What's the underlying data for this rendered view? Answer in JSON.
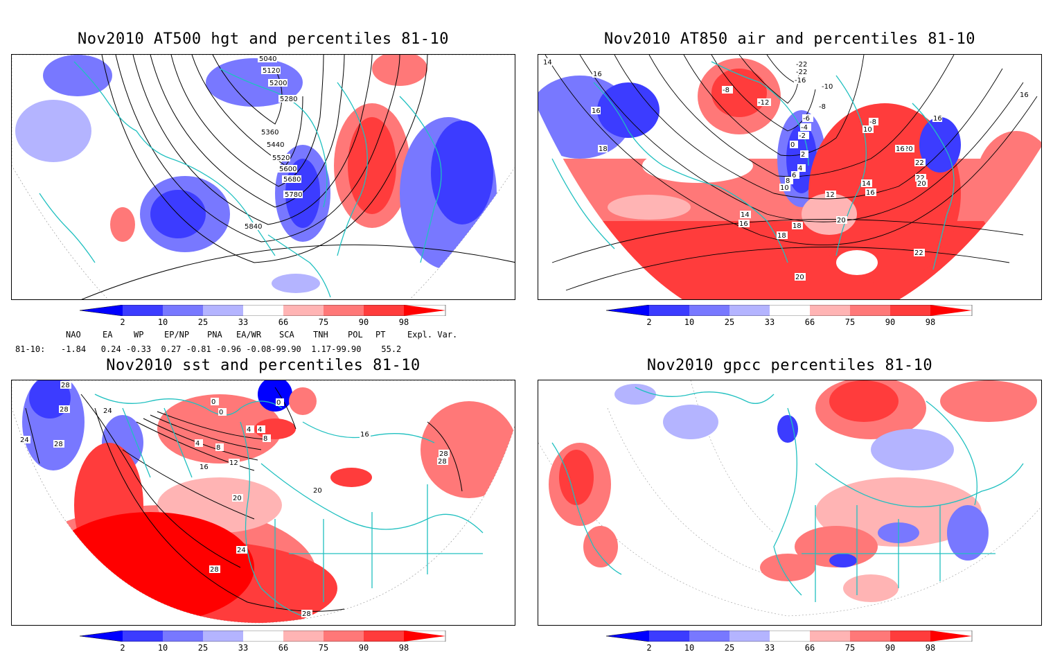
{
  "panels": [
    {
      "title": "Nov2010 AT500 hgt and percentiles 81-10",
      "contour_labels": [
        "5040",
        "5120",
        "5200",
        "5280",
        "5360",
        "5440",
        "5520",
        "5600",
        "5680",
        "5780",
        "5840"
      ]
    },
    {
      "title": "Nov2010 AT850 air and percentiles 81-10",
      "contour_labels": [
        "14",
        "16",
        "16",
        "16",
        "16",
        "18",
        "-22",
        "-22",
        "-16",
        "-10",
        "-8",
        "-12",
        "-8",
        "-6",
        "-4",
        "-2",
        "0",
        "2",
        "4",
        "6",
        "8",
        "10",
        "12",
        "14",
        "16",
        "18",
        "20",
        "22",
        "22",
        "20",
        "18",
        "-8",
        "10",
        "16",
        "14",
        "16",
        "20",
        "22",
        "20"
      ]
    },
    {
      "title": "Nov2010 sst and percentiles 81-10",
      "contour_labels": [
        "28",
        "28",
        "24",
        "24",
        "28",
        "0",
        "0",
        "0",
        "4",
        "4",
        "4",
        "8",
        "8",
        "12",
        "16",
        "20",
        "20",
        "16",
        "24",
        "28",
        "28",
        "28",
        "28"
      ]
    },
    {
      "title": "Nov2010 gpcc percentiles 81-10",
      "contour_labels": []
    }
  ],
  "colorbar": {
    "labels": [
      "2",
      "10",
      "25",
      "33",
      "66",
      "75",
      "90",
      "98"
    ],
    "colors": {
      "blue_1": "#0000ff",
      "blue_2": "#3c3cff",
      "blue_3": "#7878ff",
      "blue_4": "#b4b4ff",
      "white": "#ffffff",
      "red_1": "#ffb4b4",
      "red_2": "#ff7878",
      "red_3": "#ff3c3c",
      "red_4": "#ff0000"
    }
  },
  "indices": {
    "headers": [
      "NAO",
      "EA",
      "WP",
      "EP/NP",
      "PNA",
      "EA/WR",
      "SCA",
      "TNH",
      "POL",
      "PT",
      "Expl. Var."
    ],
    "row_label": "81-10:",
    "values_line": "-1.84   0.24 -0.33  0.27 -0.81 -0.96 -0.08-99.90  1.17-99.90    55.2"
  },
  "style": {
    "coastline_color": "#20c0c0",
    "contour_color": "#000000"
  }
}
